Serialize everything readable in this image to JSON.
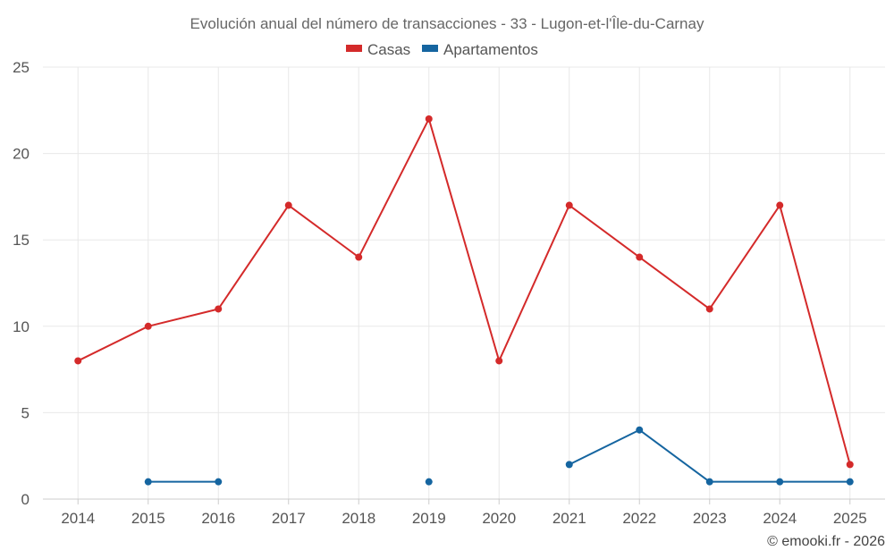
{
  "chart_data": {
    "type": "line",
    "title": "Evolución anual del número de transacciones - 33 - Lugon-et-l'Île-du-Carnay",
    "categories": [
      "2014",
      "2015",
      "2016",
      "2017",
      "2018",
      "2019",
      "2020",
      "2021",
      "2022",
      "2023",
      "2024",
      "2025"
    ],
    "series": [
      {
        "name": "Casas",
        "color": "#d42a2a",
        "values": [
          8,
          10,
          11,
          17,
          14,
          22,
          8,
          17,
          14,
          11,
          17,
          2
        ]
      },
      {
        "name": "Apartamentos",
        "color": "#1565a0",
        "values": [
          null,
          1,
          1,
          null,
          null,
          1,
          null,
          2,
          4,
          1,
          1,
          1
        ]
      }
    ],
    "ylim": [
      0,
      25
    ],
    "yticks": [
      0,
      5,
      10,
      15,
      20,
      25
    ],
    "xlabel": "",
    "ylabel": "",
    "grid": true,
    "legend": "top-center"
  },
  "credit": "© emooki.fr - 2026"
}
